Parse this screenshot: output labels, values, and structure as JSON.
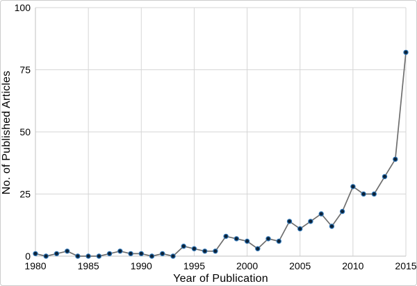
{
  "chart_data": {
    "type": "line",
    "title": "",
    "xlabel": "Year of Publication",
    "ylabel": "No. of Published Articles",
    "x": [
      1980,
      1981,
      1982,
      1983,
      1984,
      1985,
      1986,
      1987,
      1988,
      1989,
      1990,
      1991,
      1992,
      1993,
      1994,
      1995,
      1996,
      1997,
      1998,
      1999,
      2000,
      2001,
      2002,
      2003,
      2004,
      2005,
      2006,
      2007,
      2008,
      2009,
      2010,
      2011,
      2012,
      2013,
      2014,
      2015
    ],
    "values": [
      1,
      0,
      1,
      2,
      0,
      0,
      0,
      1,
      2,
      1,
      1,
      0,
      1,
      0,
      4,
      3,
      2,
      2,
      8,
      7,
      6,
      3,
      7,
      6,
      14,
      11,
      14,
      17,
      12,
      18,
      28,
      25,
      25,
      32,
      39,
      82
    ],
    "xlim": [
      1980,
      2015
    ],
    "ylim": [
      0,
      100
    ],
    "xticks": [
      1980,
      1985,
      1990,
      1995,
      2000,
      2005,
      2010,
      2015
    ],
    "yticks": [
      0,
      25,
      50,
      75,
      100
    ],
    "grid": true,
    "legend": false,
    "marker": "circle",
    "colors": {
      "line": "#6e6e6e",
      "marker_fill": "#0c2238",
      "marker_stroke": "#2e75b6",
      "gridline": "#d6d6d6",
      "axis_line": "#c2c2c2",
      "text": "#000000",
      "background": "#ffffff"
    }
  }
}
